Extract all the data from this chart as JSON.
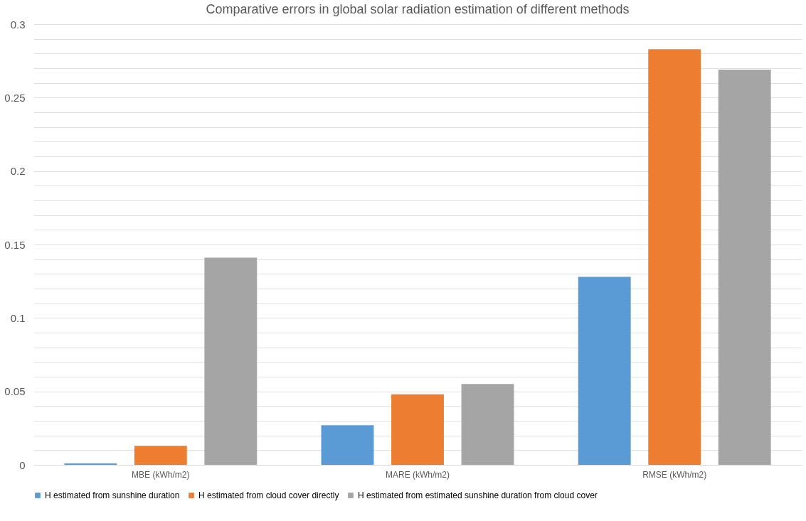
{
  "chart_data": {
    "type": "bar",
    "title": "Comparative errors in global solar radiation estimation of different methods",
    "categories": [
      "MBE (kWh/m2)",
      "MARE (kWh/m2)",
      "RMSE (kWh/m2)"
    ],
    "series": [
      {
        "name": "H estimated from sunshine duration",
        "color": "#5b9bd5",
        "values": [
          0.001,
          0.027,
          0.128
        ]
      },
      {
        "name": "H estimated from cloud cover directly",
        "color": "#ed7d31",
        "values": [
          0.013,
          0.048,
          0.283
        ]
      },
      {
        "name": "H estimated from estimated sunshine duration from cloud cover",
        "color": "#a5a5a5",
        "values": [
          0.141,
          0.055,
          0.269
        ]
      }
    ],
    "ylim": [
      0,
      0.3
    ],
    "yticks": [
      0,
      {
        "value": 0.01,
        "label": null
      },
      {
        "value": 0.02,
        "label": null
      },
      {
        "value": 0.03,
        "label": null
      },
      {
        "value": 0.04,
        "label": null
      },
      0.05,
      {
        "value": 0.06,
        "label": null
      },
      {
        "value": 0.07,
        "label": null
      },
      {
        "value": 0.08,
        "label": null
      },
      {
        "value": 0.09,
        "label": null
      },
      0.1,
      {
        "value": 0.11,
        "label": null
      },
      {
        "value": 0.12,
        "label": null
      },
      {
        "value": 0.13,
        "label": null
      },
      {
        "value": 0.14,
        "label": null
      },
      0.15,
      {
        "value": 0.16,
        "label": null
      },
      {
        "value": 0.17,
        "label": null
      },
      {
        "value": 0.18,
        "label": null
      },
      {
        "value": 0.19,
        "label": null
      },
      0.2,
      {
        "value": 0.21,
        "label": null
      },
      {
        "value": 0.22,
        "label": null
      },
      {
        "value": 0.23,
        "label": null
      },
      {
        "value": 0.24,
        "label": null
      },
      0.25,
      {
        "value": 0.26,
        "label": null
      },
      {
        "value": 0.27,
        "label": null
      },
      {
        "value": 0.28,
        "label": null
      },
      {
        "value": 0.29,
        "label": null
      },
      0.3
    ],
    "grid": "y",
    "legend": "bottom"
  }
}
